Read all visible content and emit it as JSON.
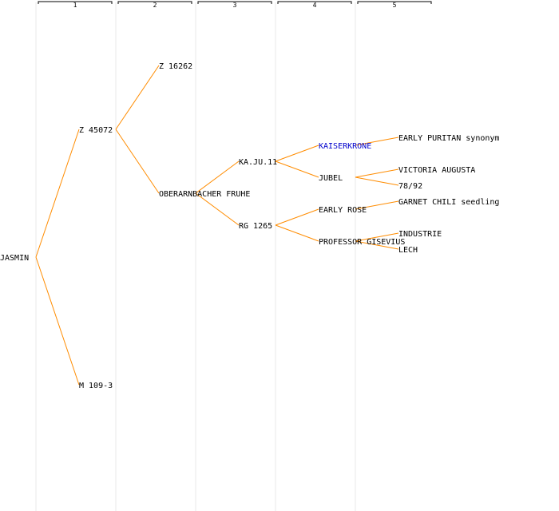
{
  "colors": {
    "edge": "#ff8c00",
    "text": "#000000",
    "highlight": "#0000cc",
    "column_line": "#e8e8e8",
    "header_bracket": "#000000"
  },
  "generations": [
    "1",
    "2",
    "3",
    "4",
    "5"
  ],
  "nodes": [
    {
      "id": "jasmin",
      "label": "JASMIN",
      "gen": 0
    },
    {
      "id": "z45072",
      "label": "Z 45072",
      "gen": 1,
      "parent": "jasmin"
    },
    {
      "id": "m1093",
      "label": "M 109-3",
      "gen": 1,
      "parent": "jasmin"
    },
    {
      "id": "z16262",
      "label": "Z 16262",
      "gen": 2,
      "parent": "z45072"
    },
    {
      "id": "oberarnbacher",
      "label": "OBERARNBACHER FRUHE",
      "gen": 2,
      "parent": "z45072"
    },
    {
      "id": "kaju11",
      "label": "KA.JU.11",
      "gen": 3,
      "parent": "oberarnbacher"
    },
    {
      "id": "rg1265",
      "label": "RG 1265",
      "gen": 3,
      "parent": "oberarnbacher"
    },
    {
      "id": "kaiserkrone",
      "label": "KAISERKRONE",
      "gen": 4,
      "parent": "kaju11",
      "highlight": true
    },
    {
      "id": "jubel",
      "label": "JUBEL",
      "gen": 4,
      "parent": "kaju11"
    },
    {
      "id": "earlyrose",
      "label": "EARLY ROSE",
      "gen": 4,
      "parent": "rg1265"
    },
    {
      "id": "gisevius",
      "label": "PROFESSOR GISEVIUS",
      "gen": 4,
      "parent": "rg1265"
    },
    {
      "id": "earlypuritan",
      "label": "EARLY PURITAN synonym",
      "gen": 5,
      "parent": "kaiserkrone"
    },
    {
      "id": "victoria",
      "label": "VICTORIA AUGUSTA",
      "gen": 5,
      "parent": "jubel"
    },
    {
      "id": "n7892",
      "label": "78/92",
      "gen": 5,
      "parent": "jubel"
    },
    {
      "id": "garnetchili",
      "label": "GARNET CHILI seedling",
      "gen": 5,
      "parent": "earlyrose"
    },
    {
      "id": "industrie",
      "label": "INDUSTRIE",
      "gen": 5,
      "parent": "gisevius"
    },
    {
      "id": "lech",
      "label": "LECH",
      "gen": 5,
      "parent": "gisevius"
    }
  ]
}
